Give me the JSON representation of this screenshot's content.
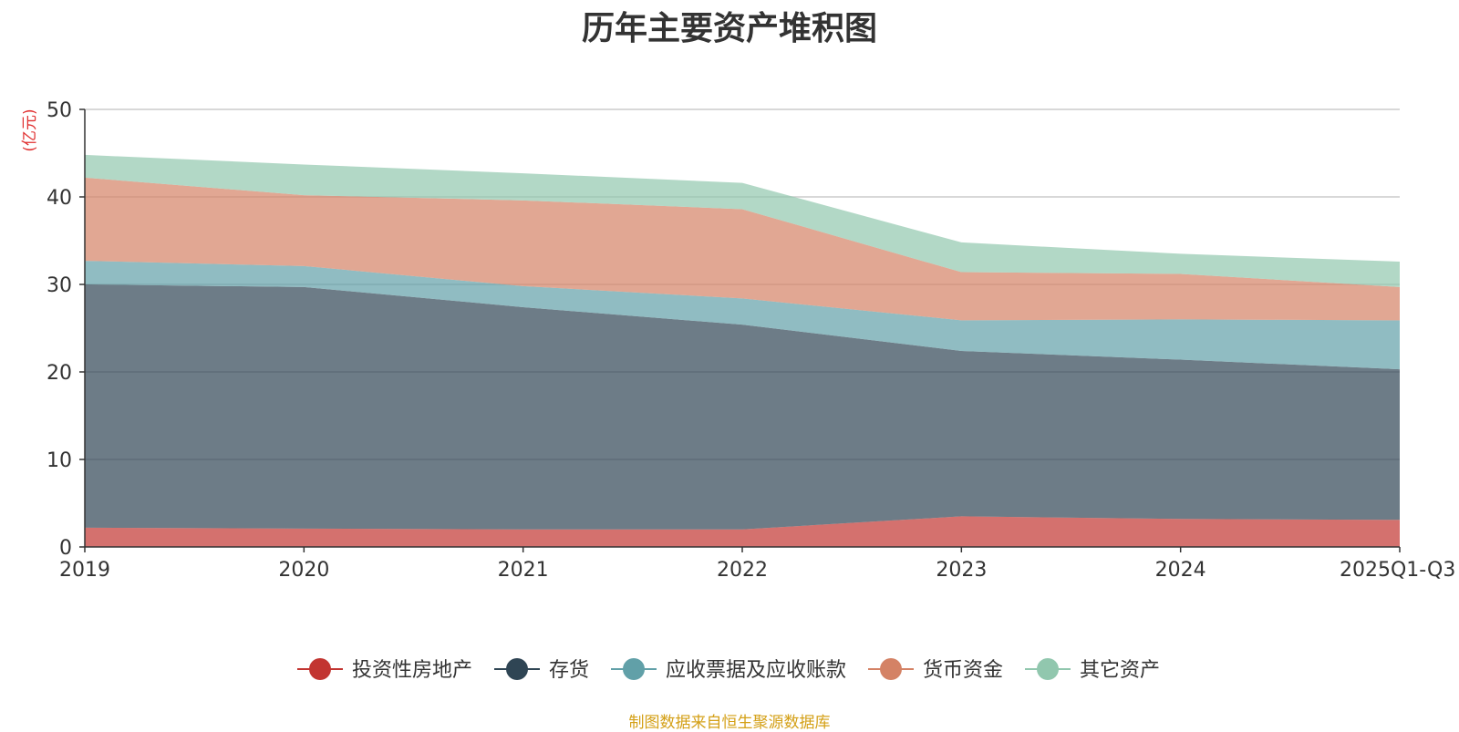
{
  "chart_data": {
    "type": "area",
    "stacked": true,
    "title": "历年主要资产堆积图",
    "ylabel": "(亿元)",
    "xlabel": "",
    "ylim": [
      0,
      50
    ],
    "yticks": [
      0,
      10,
      20,
      30,
      40,
      50
    ],
    "grid": true,
    "legend_position": "bottom",
    "categories": [
      "2019",
      "2020",
      "2021",
      "2022",
      "2023",
      "2024",
      "2025Q1-Q3"
    ],
    "series": [
      {
        "name": "投资性房地产",
        "color": "#c23531",
        "values": [
          2.2,
          2.1,
          2.0,
          2.0,
          3.5,
          3.2,
          3.1
        ]
      },
      {
        "name": "存货",
        "color": "#2f4554",
        "values": [
          27.8,
          27.6,
          25.4,
          23.4,
          18.9,
          18.2,
          17.2
        ]
      },
      {
        "name": "应收票据及应收账款",
        "color": "#61a0a8",
        "values": [
          2.7,
          2.4,
          2.4,
          3.0,
          3.5,
          4.6,
          5.6
        ]
      },
      {
        "name": "货币资金",
        "color": "#d48265",
        "values": [
          9.5,
          8.1,
          9.8,
          10.2,
          5.5,
          5.2,
          3.8
        ]
      },
      {
        "name": "其它资产",
        "color": "#91c7ae",
        "values": [
          2.6,
          3.5,
          3.1,
          3.0,
          3.4,
          2.3,
          2.9
        ]
      }
    ]
  },
  "source_note": "制图数据来自恒生聚源数据库"
}
